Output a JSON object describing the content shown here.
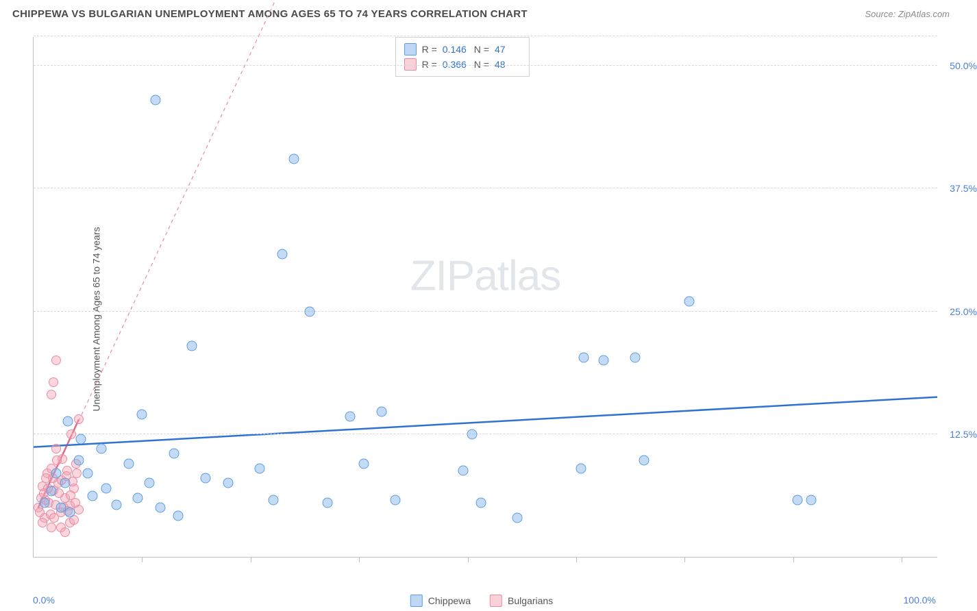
{
  "header": {
    "title": "CHIPPEWA VS BULGARIAN UNEMPLOYMENT AMONG AGES 65 TO 74 YEARS CORRELATION CHART",
    "source": "Source: ZipAtlas.com"
  },
  "ylabel": "Unemployment Among Ages 65 to 74 years",
  "watermark": {
    "part1": "ZIP",
    "part2": "atlas"
  },
  "chart": {
    "type": "scatter",
    "xlim": [
      0,
      100
    ],
    "ylim": [
      0,
      53
    ],
    "x_origin_label": "0.0%",
    "x_max_label": "100.0%",
    "y_gridlines": [
      12.5,
      25.0,
      37.5,
      50.0,
      53.0
    ],
    "y_tick_labels": [
      "12.5%",
      "25.0%",
      "37.5%",
      "50.0%"
    ],
    "x_minor_ticks": [
      12,
      24,
      36,
      48,
      60,
      72,
      84,
      96
    ],
    "background_color": "#ffffff",
    "grid_color": "#d8d8d8",
    "axis_color": "#bfbfbf",
    "tick_label_color": "#4a7fd6",
    "series": {
      "chippewa": {
        "label": "Chippewa",
        "marker_fill": "rgba(127,176,232,0.45)",
        "marker_stroke": "#5a9de0",
        "marker_size": 15,
        "trend": {
          "x1": 0,
          "y1": 11.2,
          "x2": 100,
          "y2": 16.3,
          "color": "#2f72d4",
          "width": 2.5,
          "dash": "none"
        },
        "points": [
          [
            1.2,
            5.5
          ],
          [
            2.0,
            6.7
          ],
          [
            3.0,
            5.0
          ],
          [
            3.5,
            7.5
          ],
          [
            5.0,
            9.8
          ],
          [
            6.5,
            6.2
          ],
          [
            7.5,
            11.0
          ],
          [
            8.0,
            7.0
          ],
          [
            9.2,
            5.3
          ],
          [
            10.5,
            9.5
          ],
          [
            11.5,
            6.0
          ],
          [
            12.0,
            14.5
          ],
          [
            12.8,
            7.5
          ],
          [
            14.0,
            5.0
          ],
          [
            15.5,
            10.5
          ],
          [
            16.0,
            4.2
          ],
          [
            17.5,
            21.5
          ],
          [
            19.0,
            8.0
          ],
          [
            21.5,
            7.5
          ],
          [
            25.0,
            9.0
          ],
          [
            26.5,
            5.8
          ],
          [
            27.5,
            30.8
          ],
          [
            13.5,
            46.5
          ],
          [
            28.8,
            40.5
          ],
          [
            30.5,
            25.0
          ],
          [
            32.5,
            5.5
          ],
          [
            35.0,
            14.3
          ],
          [
            36.5,
            9.5
          ],
          [
            38.5,
            14.8
          ],
          [
            40.0,
            5.8
          ],
          [
            47.5,
            8.8
          ],
          [
            48.5,
            12.5
          ],
          [
            49.5,
            5.5
          ],
          [
            53.5,
            4.0
          ],
          [
            60.5,
            9.0
          ],
          [
            60.8,
            20.3
          ],
          [
            63.0,
            20.0
          ],
          [
            66.5,
            20.3
          ],
          [
            67.5,
            9.8
          ],
          [
            72.5,
            26.0
          ],
          [
            84.5,
            5.8
          ],
          [
            86.0,
            5.8
          ],
          [
            3.8,
            13.8
          ],
          [
            5.2,
            12.0
          ],
          [
            2.5,
            8.5
          ],
          [
            4.0,
            4.5
          ],
          [
            6.0,
            8.5
          ]
        ]
      },
      "bulgarians": {
        "label": "Bulgarians",
        "marker_fill": "rgba(244,164,180,0.45)",
        "marker_stroke": "#ea8ba3",
        "marker_size": 14,
        "trend": {
          "x1": 0.5,
          "y1": 5.0,
          "x2": 5.0,
          "y2": 14.0,
          "extend_x": 35,
          "extend_y": 73,
          "color": "#ea8ba3",
          "width": 1.2,
          "dash": "5,5"
        },
        "points": [
          [
            0.5,
            5.0
          ],
          [
            0.8,
            6.0
          ],
          [
            1.0,
            7.2
          ],
          [
            1.2,
            4.0
          ],
          [
            1.5,
            8.5
          ],
          [
            1.7,
            5.5
          ],
          [
            2.0,
            9.0
          ],
          [
            2.2,
            6.8
          ],
          [
            2.5,
            11.0
          ],
          [
            2.7,
            7.5
          ],
          [
            3.0,
            4.5
          ],
          [
            3.2,
            10.0
          ],
          [
            3.5,
            6.0
          ],
          [
            3.7,
            8.8
          ],
          [
            4.0,
            5.2
          ],
          [
            4.2,
            12.5
          ],
          [
            4.5,
            7.0
          ],
          [
            4.7,
            9.5
          ],
          [
            5.0,
            4.8
          ],
          [
            1.0,
            3.5
          ],
          [
            1.3,
            5.8
          ],
          [
            1.6,
            7.0
          ],
          [
            1.9,
            4.3
          ],
          [
            2.1,
            8.0
          ],
          [
            2.4,
            5.3
          ],
          [
            2.6,
            9.8
          ],
          [
            2.8,
            6.5
          ],
          [
            3.1,
            7.8
          ],
          [
            3.3,
            5.0
          ],
          [
            3.6,
            8.2
          ],
          [
            3.8,
            4.7
          ],
          [
            4.1,
            6.3
          ],
          [
            4.3,
            7.7
          ],
          [
            4.6,
            5.5
          ],
          [
            4.8,
            8.5
          ],
          [
            0.7,
            4.5
          ],
          [
            1.1,
            6.5
          ],
          [
            1.4,
            8.0
          ],
          [
            3.0,
            3.0
          ],
          [
            2.3,
            4.0
          ],
          [
            4.0,
            3.5
          ],
          [
            4.5,
            3.8
          ],
          [
            2.5,
            20.0
          ],
          [
            2.0,
            16.5
          ],
          [
            2.2,
            17.8
          ],
          [
            5.0,
            14.0
          ],
          [
            2.0,
            3.0
          ],
          [
            3.5,
            2.5
          ]
        ]
      }
    }
  },
  "stats": {
    "rows": [
      {
        "swatch": "blue",
        "r": "0.146",
        "n": "47"
      },
      {
        "swatch": "pink",
        "r": "0.366",
        "n": "48"
      }
    ],
    "r_label": "R =",
    "n_label": "N ="
  },
  "legend": {
    "items": [
      {
        "swatch": "blue",
        "label": "Chippewa"
      },
      {
        "swatch": "pink",
        "label": "Bulgarians"
      }
    ]
  }
}
